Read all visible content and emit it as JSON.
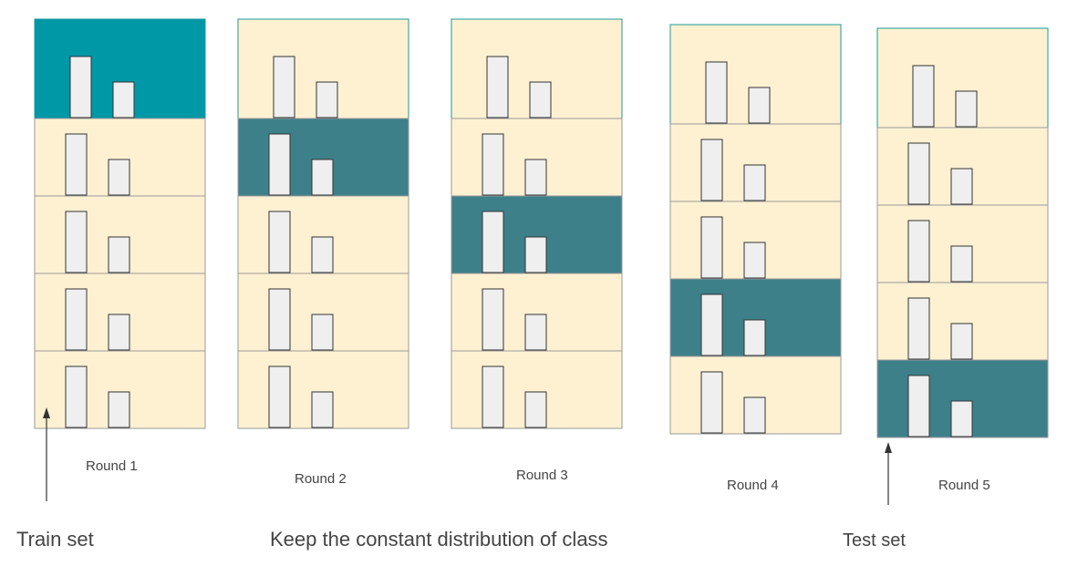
{
  "rounds": [
    {
      "label": "Round 1",
      "test_fold": 1
    },
    {
      "label": "Round 2",
      "test_fold": 2
    },
    {
      "label": "Round 3",
      "test_fold": 3
    },
    {
      "label": "Round 4",
      "test_fold": 4
    },
    {
      "label": "Round 5",
      "test_fold": 5
    }
  ],
  "folds_per_round": 5,
  "class_ratio": {
    "tall_bar": 1.0,
    "short_bar": 0.58
  },
  "annotations": {
    "train_set": "Train set",
    "center_caption": "Keep the constant distribution of class",
    "test_set": "Test set"
  },
  "colors": {
    "train_fold_fill": "#fdf1d2",
    "test_fold_fill": "#3d808a",
    "test_fold_fill_round1": "#0097a7",
    "fold_border": "#9a9a9a",
    "column_border_top": "#1a9a9a",
    "bar_fill": "#efefef",
    "bar_stroke": "#333333",
    "arrow": "#333333"
  }
}
